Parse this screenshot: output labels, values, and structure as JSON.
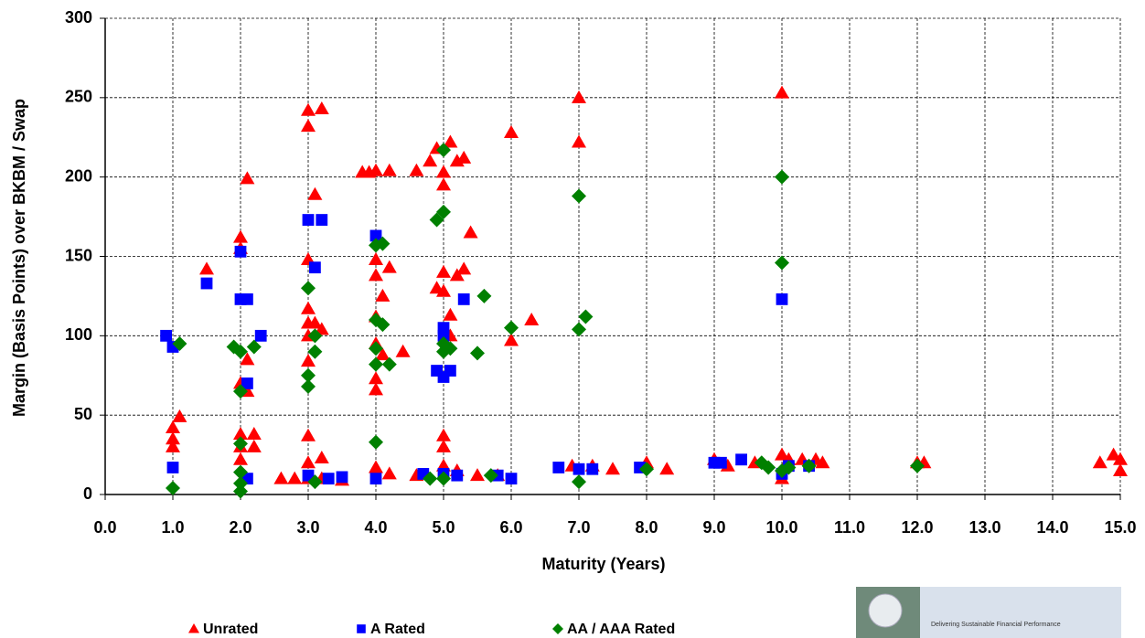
{
  "chart_data": {
    "type": "scatter",
    "x_label": "Maturity (Years)",
    "y_label": "Margin (Basis Points) over BKBM / Swap",
    "xlim": [
      0,
      15
    ],
    "ylim": [
      0,
      300
    ],
    "xticks": [
      {
        "value": 0,
        "label": "0.0"
      },
      {
        "value": 1,
        "label": "1.0"
      },
      {
        "value": 2,
        "label": "2.0"
      },
      {
        "value": 3,
        "label": "3.0"
      },
      {
        "value": 4,
        "label": "4.0"
      },
      {
        "value": 5,
        "label": "5.0"
      },
      {
        "value": 6,
        "label": "6.0"
      },
      {
        "value": 7,
        "label": "7.0"
      },
      {
        "value": 8,
        "label": "8.0"
      },
      {
        "value": 9,
        "label": "9.0"
      },
      {
        "value": 10,
        "label": "10.0"
      },
      {
        "value": 11,
        "label": "11.0"
      },
      {
        "value": 12,
        "label": "12.0"
      },
      {
        "value": 13,
        "label": "13.0"
      },
      {
        "value": 14,
        "label": "14.0"
      },
      {
        "value": 15,
        "label": "15.0"
      }
    ],
    "yticks": [
      0,
      50,
      100,
      150,
      200,
      250,
      300
    ],
    "grid": true,
    "legend_position": "bottom",
    "logo_text": "Delivering Sustainable Financial Performance",
    "series": [
      {
        "name": "Unrated",
        "color": "#ff0000",
        "marker": "triangle",
        "x": [
          1.0,
          1.0,
          1.0,
          1.1,
          1.5,
          2.0,
          2.0,
          2.1,
          2.0,
          2.1,
          2.1,
          2.0,
          2.0,
          2.0,
          2.2,
          2.2,
          2.6,
          2.8,
          3.0,
          3.0,
          3.1,
          3.2,
          3.0,
          3.0,
          3.0,
          3.0,
          3.0,
          3.1,
          3.2,
          3.0,
          3.0,
          3.0,
          3.2,
          3.2,
          3.5,
          3.8,
          3.9,
          4.0,
          4.2,
          4.0,
          4.0,
          4.1,
          4.2,
          4.0,
          4.0,
          4.0,
          4.0,
          4.1,
          4.4,
          4.0,
          4.2,
          4.6,
          4.8,
          4.9,
          5.0,
          5.0,
          5.1,
          5.2,
          5.3,
          4.9,
          5.0,
          5.0,
          5.2,
          5.3,
          5.4,
          5.1,
          5.1,
          5.0,
          5.0,
          5.0,
          5.2,
          4.6,
          5.5,
          6.0,
          6.3,
          6.0,
          5.8,
          7.0,
          7.0,
          6.9,
          7.2,
          7.5,
          8.0,
          8.3,
          9.0,
          9.2,
          9.6,
          10.0,
          10.0,
          10.1,
          10.0,
          10.3,
          10.5,
          10.6,
          12.0,
          12.1,
          14.7,
          14.9,
          15.0,
          15.0
        ],
        "values": [
          42,
          35,
          30,
          49,
          142,
          162,
          155,
          199,
          70,
          85,
          65,
          38,
          30,
          22,
          38,
          30,
          10,
          10,
          242,
          232,
          189,
          243,
          148,
          117,
          108,
          100,
          84,
          108,
          104,
          37,
          20,
          10,
          23,
          10,
          9,
          203,
          203,
          204,
          204,
          148,
          138,
          125,
          143,
          112,
          95,
          73,
          66,
          88,
          90,
          17,
          13,
          204,
          210,
          218,
          203,
          195,
          222,
          210,
          212,
          130,
          128,
          140,
          138,
          142,
          165,
          113,
          100,
          37,
          30,
          18,
          15,
          12,
          12,
          228,
          110,
          97,
          12,
          250,
          222,
          18,
          18,
          16,
          20,
          16,
          22,
          18,
          20,
          253,
          25,
          22,
          10,
          22,
          22,
          20,
          20,
          20,
          20,
          25,
          22,
          15
        ]
      },
      {
        "name": "A Rated",
        "color": "#0000ff",
        "marker": "square",
        "x": [
          0.9,
          1.0,
          1.0,
          1.5,
          2.0,
          2.0,
          2.1,
          2.3,
          2.1,
          2.1,
          3.0,
          3.2,
          3.1,
          3.0,
          3.3,
          3.5,
          4.0,
          4.0,
          4.7,
          5.0,
          5.0,
          4.9,
          5.0,
          5.1,
          5.3,
          5.0,
          5.2,
          5.8,
          6.0,
          6.7,
          7.0,
          7.2,
          7.9,
          9.0,
          9.1,
          9.4,
          10.0,
          10.0,
          10.1,
          10.4
        ],
        "values": [
          100,
          93,
          17,
          133,
          153,
          123,
          123,
          100,
          70,
          10,
          173,
          173,
          143,
          12,
          10,
          11,
          163,
          10,
          13,
          105,
          100,
          78,
          74,
          78,
          123,
          13,
          12,
          12,
          10,
          17,
          16,
          16,
          17,
          20,
          20,
          22,
          123,
          13,
          18,
          18
        ]
      },
      {
        "name": "AA / AAA  Rated",
        "color": "#008000",
        "marker": "diamond",
        "x": [
          1.0,
          1.1,
          1.9,
          2.0,
          2.0,
          2.2,
          2.0,
          2.0,
          2.0,
          2.0,
          3.0,
          3.0,
          3.0,
          3.1,
          3.1,
          3.1,
          4.0,
          4.1,
          4.0,
          4.1,
          4.0,
          4.0,
          4.2,
          4.0,
          4.8,
          4.9,
          5.0,
          5.0,
          5.0,
          5.0,
          5.1,
          5.5,
          5.6,
          5.0,
          5.7,
          6.0,
          7.0,
          7.0,
          7.1,
          7.0,
          8.0,
          9.7,
          9.8,
          10.0,
          10.0,
          10.0,
          10.1,
          10.4,
          12.0
        ],
        "values": [
          4,
          95,
          93,
          90,
          65,
          93,
          32,
          14,
          7,
          2,
          130,
          75,
          68,
          100,
          90,
          8,
          157,
          158,
          110,
          107,
          92,
          82,
          82,
          33,
          10,
          173,
          178,
          217,
          95,
          90,
          92,
          89,
          125,
          10,
          12,
          105,
          188,
          104,
          112,
          8,
          16,
          20,
          17,
          200,
          146,
          15,
          17,
          18,
          18
        ]
      }
    ]
  }
}
